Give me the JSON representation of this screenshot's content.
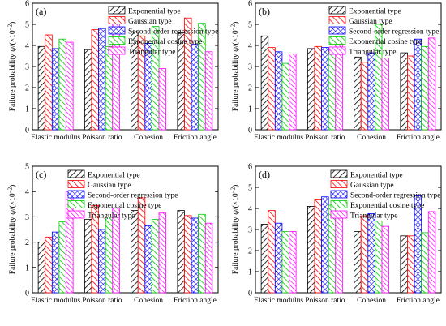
{
  "figure": {
    "categories": [
      "Elastic modulus",
      "Poisson ratio",
      "Cohesion",
      "Friction angle"
    ],
    "ylabel_text": "Failure probability ",
    "ylabel_sym": "ψ",
    "ylabel_unit_open": "/(×10",
    "ylabel_exp": "−2",
    "ylabel_unit_close": ")"
  },
  "legend_entries": [
    "Exponential type",
    "Gaussian type",
    "Second-order regression type",
    "Exponential cosine type",
    "Triangular type"
  ],
  "colors": {
    "exponential": "#000000",
    "gaussian": "#ff0000",
    "second_order": "#0000ff",
    "exp_cosine": "#00cc00",
    "triangular": "#ff00ff"
  },
  "chart_data": [
    {
      "type": "bar",
      "panel_label": "(a)",
      "categories": [
        "Elastic modulus",
        "Poisson ratio",
        "Cohesion",
        "Friction angle"
      ],
      "ylim": [
        0,
        6
      ],
      "yticks": [
        0,
        1,
        2,
        3,
        4,
        5,
        6
      ],
      "series": [
        {
          "name": "Exponential type",
          "values": [
            3.95,
            3.8,
            4.65,
            4.6
          ]
        },
        {
          "name": "Gaussian type",
          "values": [
            4.5,
            4.75,
            4.45,
            5.3
          ]
        },
        {
          "name": "Second-order regression type",
          "values": [
            3.85,
            4.8,
            4.1,
            4.05
          ]
        },
        {
          "name": "Exponential cosine type",
          "values": [
            4.3,
            3.95,
            4.9,
            5.05
          ]
        },
        {
          "name": "Triangular type",
          "values": [
            4.15,
            5.2,
            2.9,
            3.7
          ]
        }
      ]
    },
    {
      "type": "bar",
      "panel_label": "(b)",
      "categories": [
        "Elastic modulus",
        "Poisson ratio",
        "Cohesion",
        "Friction angle"
      ],
      "ylim": [
        0,
        6
      ],
      "yticks": [
        0,
        1,
        2,
        3,
        4,
        5,
        6
      ],
      "series": [
        {
          "name": "Exponential type",
          "values": [
            4.45,
            3.85,
            3.45,
            3.65
          ]
        },
        {
          "name": "Gaussian type",
          "values": [
            3.9,
            3.95,
            3.2,
            3.5
          ]
        },
        {
          "name": "Second-order regression type",
          "values": [
            3.7,
            3.9,
            3.65,
            4.3
          ]
        },
        {
          "name": "Exponential cosine type",
          "values": [
            3.15,
            3.7,
            5.0,
            3.95
          ]
        },
        {
          "name": "Triangular type",
          "values": [
            3.6,
            4.05,
            3.4,
            4.35
          ]
        }
      ]
    },
    {
      "type": "bar",
      "panel_label": "(c)",
      "categories": [
        "Elastic modulus",
        "Poisson ratio",
        "Cohesion",
        "Friction angle"
      ],
      "ylim": [
        0,
        5
      ],
      "yticks": [
        0,
        1,
        2,
        3,
        4,
        5
      ],
      "series": [
        {
          "name": "Exponential type",
          "values": [
            2.0,
            2.9,
            3.25,
            3.25
          ]
        },
        {
          "name": "Gaussian type",
          "values": [
            2.2,
            3.45,
            3.75,
            3.05
          ]
        },
        {
          "name": "Second-order regression type",
          "values": [
            2.4,
            2.5,
            2.65,
            2.95
          ]
        },
        {
          "name": "Exponential cosine type",
          "values": [
            2.8,
            3.0,
            2.9,
            3.1
          ]
        },
        {
          "name": "Triangular type",
          "values": [
            4.0,
            3.35,
            3.15,
            2.75
          ]
        }
      ]
    },
    {
      "type": "bar",
      "panel_label": "(d)",
      "categories": [
        "Elastic modulus",
        "Poisson ratio",
        "Cohesion",
        "Friction angle"
      ],
      "ylim": [
        0,
        6
      ],
      "yticks": [
        0,
        1,
        2,
        3,
        4,
        5,
        6
      ],
      "series": [
        {
          "name": "Exponential type",
          "values": [
            3.25,
            4.1,
            2.9,
            2.7
          ]
        },
        {
          "name": "Gaussian type",
          "values": [
            3.9,
            4.4,
            3.65,
            2.7
          ]
        },
        {
          "name": "Second-order regression type",
          "values": [
            3.3,
            4.55,
            3.75,
            4.6
          ]
        },
        {
          "name": "Exponential cosine type",
          "values": [
            2.9,
            4.15,
            3.4,
            2.85
          ]
        },
        {
          "name": "Triangular type",
          "values": [
            2.9,
            3.8,
            3.15,
            3.85
          ]
        }
      ]
    }
  ]
}
